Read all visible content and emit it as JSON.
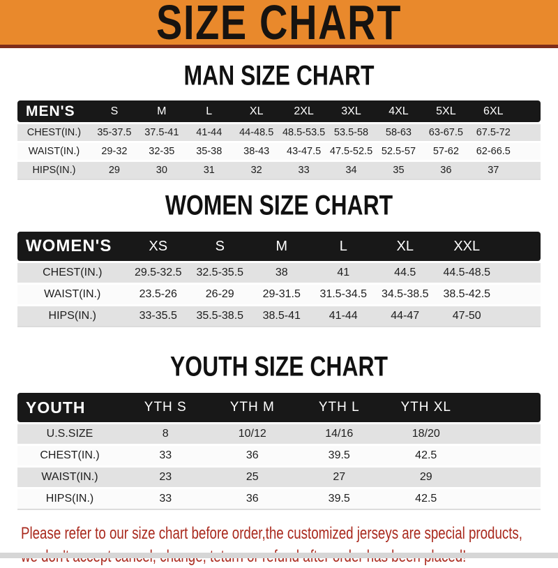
{
  "banner": {
    "title": "SIZE CHART",
    "bg_color": "#E9892C",
    "stripe_color": "#7E2D1B"
  },
  "section_headings": {
    "men": "MAN SIZE CHART",
    "women": "WOMEN SIZE CHART",
    "youth": "YOUTH SIZE CHART"
  },
  "tables": {
    "men": {
      "corner_label": "MEN'S",
      "sizes": [
        "S",
        "M",
        "L",
        "XL",
        "2XL",
        "3XL",
        "4XL",
        "5XL",
        "6XL"
      ],
      "rows": [
        {
          "label": "CHEST(IN.)",
          "values": [
            "35-37.5",
            "37.5-41",
            "41-44",
            "44-48.5",
            "48.5-53.5",
            "53.5-58",
            "58-63",
            "63-67.5",
            "67.5-72"
          ]
        },
        {
          "label": "WAIST(IN.)",
          "values": [
            "29-32",
            "32-35",
            "35-38",
            "38-43",
            "43-47.5",
            "47.5-52.5",
            "52.5-57",
            "57-62",
            "62-66.5"
          ]
        },
        {
          "label": "HIPS(IN.)",
          "values": [
            "29",
            "30",
            "31",
            "32",
            "33",
            "34",
            "35",
            "36",
            "37"
          ]
        }
      ]
    },
    "women": {
      "corner_label": "WOMEN'S",
      "sizes": [
        "XS",
        "S",
        "M",
        "L",
        "XL",
        "XXL"
      ],
      "rows": [
        {
          "label": "CHEST(IN.)",
          "values": [
            "29.5-32.5",
            "32.5-35.5",
            "38",
            "41",
            "44.5",
            "44.5-48.5"
          ]
        },
        {
          "label": "WAIST(IN.)",
          "values": [
            "23.5-26",
            "26-29",
            "29-31.5",
            "31.5-34.5",
            "34.5-38.5",
            "38.5-42.5"
          ]
        },
        {
          "label": "HIPS(IN.)",
          "values": [
            "33-35.5",
            "35.5-38.5",
            "38.5-41",
            "41-44",
            "44-47",
            "47-50"
          ]
        }
      ]
    },
    "youth": {
      "corner_label": "YOUTH",
      "sizes": [
        "YTH S",
        "YTH M",
        "YTH L",
        "YTH XL"
      ],
      "rows": [
        {
          "label": "U.S.SIZE",
          "values": [
            "8",
            "10/12",
            "14/16",
            "18/20"
          ]
        },
        {
          "label": "CHEST(IN.)",
          "values": [
            "33",
            "36",
            "39.5",
            "42.5"
          ]
        },
        {
          "label": "WAIST(IN.)",
          "values": [
            "23",
            "25",
            "27",
            "29"
          ]
        },
        {
          "label": "HIPS(IN.)",
          "values": [
            "33",
            "36",
            "39.5",
            "42.5"
          ]
        }
      ]
    }
  },
  "note": {
    "line1": "Please refer to our size chart before order,the customized jerseys are special products,",
    "line2": "we don't accept cancel, change, teturn or refund after order has been placed!",
    "color": "#A9291D"
  }
}
